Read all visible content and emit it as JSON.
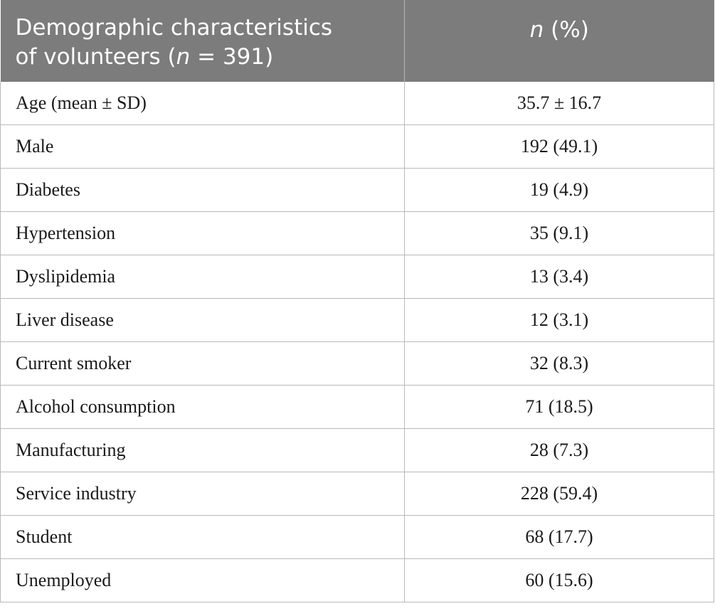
{
  "header": {
    "col1_line1": "Demographic characteristics",
    "col1_line2_pre": "of volunteers (",
    "col1_line2_n": "n",
    "col1_line2_post": " = 391)",
    "col2_n": "n",
    "col2_rest": " (%)"
  },
  "rows": [
    {
      "label": "Age (mean ± SD)",
      "value": "35.7 ± 16.7"
    },
    {
      "label": "Male",
      "value": "192 (49.1)"
    },
    {
      "label": "Diabetes",
      "value": "19 (4.9)"
    },
    {
      "label": "Hypertension",
      "value": "35 (9.1)"
    },
    {
      "label": "Dyslipidemia",
      "value": "13 (3.4)"
    },
    {
      "label": "Liver disease",
      "value": "12 (3.1)"
    },
    {
      "label": "Current smoker",
      "value": "32 (8.3)"
    },
    {
      "label": "Alcohol consumption",
      "value": "71 (18.5)"
    },
    {
      "label": "Manufacturing",
      "value": "28 (7.3)"
    },
    {
      "label": "Service industry",
      "value": "228 (59.4)"
    },
    {
      "label": "Student",
      "value": "68 (17.7)"
    },
    {
      "label": "Unemployed",
      "value": "60 (15.6)"
    }
  ]
}
